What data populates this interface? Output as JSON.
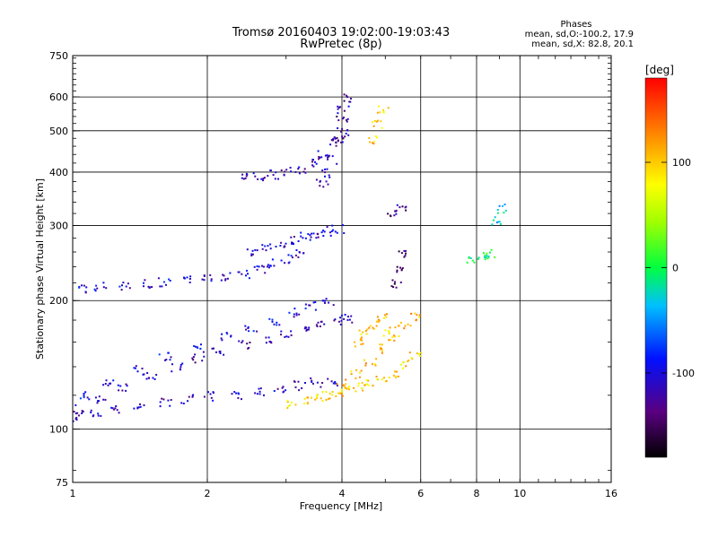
{
  "chart_data": {
    "type": "scatter",
    "title": "Tromsø 20160403 19:02:00-19:03:43",
    "subtitle": "RwPretec (8p)",
    "stats": {
      "heading": "Phases",
      "line_o": "mean, sd,O:-100.2, 17.9",
      "line_x": "mean, sd,X:  82.8, 20.1"
    },
    "xlabel": "Frequency [MHz]",
    "ylabel": "Stationary phase Virtual Height [km]",
    "x_scale": "log",
    "y_scale": "log",
    "xlim": [
      1,
      16
    ],
    "ylim": [
      75,
      750
    ],
    "x_ticks": [
      1,
      2,
      4,
      6,
      8,
      10,
      16
    ],
    "y_ticks": [
      75,
      100,
      200,
      300,
      400,
      500,
      600,
      750
    ],
    "x_gridlines": [
      2,
      4,
      6,
      8,
      10
    ],
    "y_gridlines": [
      100,
      200,
      300,
      400,
      500,
      600
    ],
    "grid": true,
    "colorbar": {
      "label": "[deg]",
      "min": -180,
      "max": 180,
      "ticks": [
        100,
        0,
        -100
      ]
    },
    "traces": [
      {
        "x": [
          1.0,
          1.12,
          1.25,
          1.4,
          1.6,
          1.8,
          2.0,
          2.3,
          2.6,
          2.9,
          3.2,
          3.5,
          3.8
        ],
        "y": [
          107,
          110,
          112,
          114,
          116,
          118,
          120,
          121,
          123,
          125,
          127,
          129,
          130
        ],
        "phase": -110
      },
      {
        "x": [
          1.02,
          1.15,
          1.3,
          1.5,
          1.7,
          1.9,
          2.1,
          2.4,
          2.7,
          3.0,
          3.3,
          3.6,
          3.9,
          4.1
        ],
        "y": [
          112,
          118,
          125,
          133,
          140,
          147,
          152,
          158,
          163,
          168,
          172,
          176,
          180,
          182
        ],
        "phase": -120
      },
      {
        "x": [
          1.05,
          1.2,
          1.4,
          1.6,
          1.9,
          2.2,
          2.5,
          2.8,
          3.1,
          3.4,
          3.7
        ],
        "y": [
          120,
          128,
          138,
          148,
          156,
          165,
          172,
          180,
          188,
          195,
          200
        ],
        "phase": -100
      },
      {
        "x": [
          3.1,
          3.3,
          3.5,
          3.7,
          3.9,
          4.1,
          4.3,
          4.6,
          4.9,
          5.2,
          5.5,
          5.8
        ],
        "y": [
          115,
          117,
          118,
          120,
          122,
          124,
          126,
          128,
          131,
          135,
          142,
          150
        ],
        "phase": 95
      },
      {
        "x": [
          4.0,
          4.3,
          4.6,
          4.9,
          5.2,
          5.5,
          5.8
        ],
        "y": [
          128,
          135,
          145,
          155,
          165,
          175,
          185
        ],
        "phase": 110
      },
      {
        "x": [
          4.3,
          4.5,
          4.7,
          4.9,
          5.1
        ],
        "y": [
          160,
          168,
          176,
          184,
          170
        ],
        "phase": 100
      },
      {
        "x": [
          1.05,
          1.15,
          1.3,
          1.45,
          1.6,
          1.8,
          2.0,
          2.2,
          2.4,
          2.6,
          2.8,
          3.0,
          3.2
        ],
        "y": [
          215,
          216,
          218,
          220,
          222,
          224,
          226,
          228,
          232,
          238,
          245,
          252,
          258
        ],
        "phase": -105
      },
      {
        "x": [
          2.5,
          2.7,
          2.9,
          3.1,
          3.3,
          3.5,
          3.7,
          3.9
        ],
        "y": [
          262,
          268,
          272,
          278,
          284,
          288,
          292,
          296
        ],
        "phase": -110
      },
      {
        "x": [
          2.4,
          2.6,
          2.8,
          3.0,
          3.2,
          3.4,
          3.6,
          3.8,
          4.0
        ],
        "y": [
          390,
          392,
          396,
          402,
          408,
          420,
          440,
          470,
          500
        ],
        "phase": -115
      },
      {
        "x": [
          3.6,
          3.7,
          3.8,
          3.9,
          4.0
        ],
        "y": [
          380,
          400,
          430,
          480,
          560
        ],
        "phase": -120
      },
      {
        "x": [
          3.95,
          4.0,
          4.05
        ],
        "y": [
          480,
          540,
          600
        ],
        "phase": -130
      },
      {
        "x": [
          4.7,
          4.8,
          4.9
        ],
        "y": [
          480,
          520,
          560
        ],
        "phase": 95
      },
      {
        "x": [
          5.3,
          5.4,
          5.5
        ],
        "y": [
          220,
          240,
          260
        ],
        "phase": -140
      },
      {
        "x": [
          5.2,
          5.4
        ],
        "y": [
          320,
          330
        ],
        "phase": -130
      },
      {
        "x": [
          7.8,
          8.2,
          8.5
        ],
        "y": [
          250,
          255,
          260
        ],
        "phase": 0
      },
      {
        "x": [
          8.8,
          9.0
        ],
        "y": [
          310,
          330
        ],
        "phase": -30
      }
    ]
  }
}
